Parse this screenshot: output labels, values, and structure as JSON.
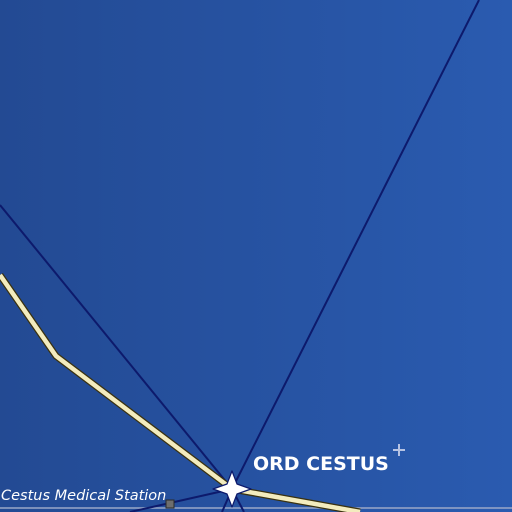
{
  "map": {
    "system": {
      "label": "ORD CESTUS",
      "icon": "star-icon"
    },
    "station": {
      "label": "Cestus Medical Station",
      "icon": "station-marker-icon"
    },
    "waypoint_icon": "waypoint-cross-icon",
    "colors": {
      "background_dark": "#234a93",
      "background_light": "#2a5bb0",
      "lane": "#0d1a6c",
      "route_fill": "#f3ecbe",
      "route_outline": "#3a3210",
      "grid_line": "#9aa7c8",
      "waypoint": "#b7c3e3",
      "label": "#ffffff"
    }
  }
}
